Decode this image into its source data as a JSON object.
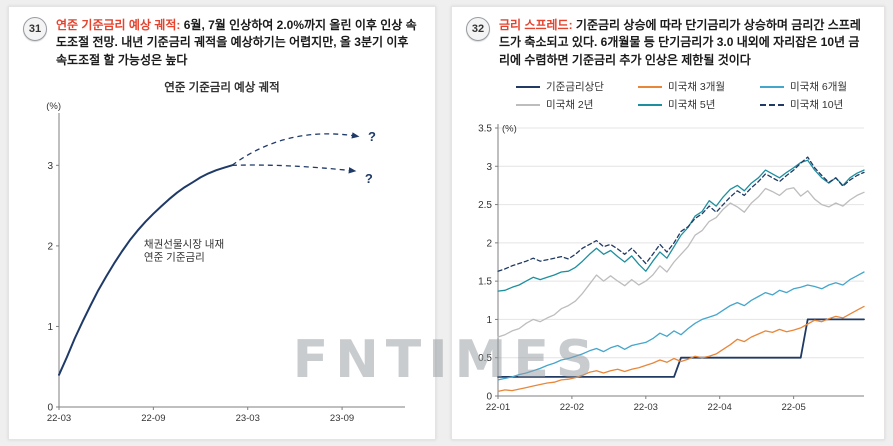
{
  "watermark": "FNTIMES",
  "accent_red": "#e5432e",
  "panels": [
    {
      "number": "31",
      "title_red": "연준 기준금리 예상 궤적:",
      "description": " 6월, 7월 인상하여 2.0%까지 올린 이후 인상 속도조절 전망. 내년 기준금리 궤적을 예상하기는 어렵지만, 올 3분기 이후 속도조절 할 가능성은 높다"
    },
    {
      "number": "32",
      "title_red": "금리 스프레드:",
      "description": " 기준금리 상승에 따라 단기금리가 상승하며 금리간 스프레드가 축소되고 있다. 6개월물 등 단기금리가 3.0 내외에 자리잡은 10년 금리에 수렴하면 기준금리 추가 인상은 제한될 것이다"
    }
  ],
  "chart_data": [
    {
      "type": "line",
      "title": "연준 기준금리 예상 궤적",
      "ylabel": "(%)",
      "ylabel_pos": "above-axis",
      "ylim": [
        0,
        3.6
      ],
      "yticks": [
        0,
        1,
        2,
        3
      ],
      "xlim": [
        0,
        22
      ],
      "xticks": [
        {
          "pos": 0,
          "label": "22-03"
        },
        {
          "pos": 6,
          "label": "22-09"
        },
        {
          "pos": 12,
          "label": "23-03"
        },
        {
          "pos": 18,
          "label": "23-09"
        }
      ],
      "grid": false,
      "accent": "#1f3a68",
      "series": [
        {
          "name": "채권선물시장 내재 연준 기준금리",
          "color": "#1f3a68",
          "width": 2,
          "x": [
            0,
            0.5,
            1,
            1.5,
            2,
            2.5,
            3,
            3.5,
            4,
            4.5,
            5,
            5.5,
            6,
            6.5,
            7,
            7.5,
            8,
            8.5,
            9,
            9.5,
            10,
            10.5,
            11
          ],
          "values": [
            0.4,
            0.62,
            0.85,
            1.06,
            1.26,
            1.45,
            1.62,
            1.78,
            1.93,
            2.07,
            2.19,
            2.3,
            2.4,
            2.49,
            2.58,
            2.66,
            2.73,
            2.79,
            2.85,
            2.9,
            2.94,
            2.97,
            3.0
          ]
        }
      ],
      "projections": [
        {
          "from_x": 11,
          "from_y": 3.0,
          "ctrl_x": 14.5,
          "ctrl_y": 3.5,
          "to_x": 19.0,
          "to_y": 3.36,
          "label": "?",
          "label_x": 19.9,
          "label_y": 3.3
        },
        {
          "from_x": 11,
          "from_y": 3.0,
          "ctrl_x": 14.5,
          "ctrl_y": 3.02,
          "to_x": 18.8,
          "to_y": 2.93,
          "label": "?",
          "label_x": 19.7,
          "label_y": 2.78
        }
      ],
      "annotation": {
        "lines": [
          "채권선물시장 내재",
          "연준 기준금리"
        ],
        "x": 5.4,
        "y": 1.98,
        "color": "#333333"
      }
    },
    {
      "type": "line",
      "ylabel": "(%)",
      "ylabel_pos": "beside-top-tick",
      "ylim": [
        0,
        3.5
      ],
      "yticks": [
        0,
        0.5,
        1,
        1.5,
        2,
        2.5,
        3,
        3.5
      ],
      "xlim": [
        0,
        52
      ],
      "xticks": [
        {
          "pos": 0,
          "label": "22-01"
        },
        {
          "pos": 10.5,
          "label": "22-02"
        },
        {
          "pos": 21,
          "label": "22-03"
        },
        {
          "pos": 31.5,
          "label": "22-04"
        },
        {
          "pos": 42,
          "label": "22-05"
        }
      ],
      "grid": true,
      "accent": "#1f3a68",
      "series": [
        {
          "name": "기준금리상단",
          "color": "#203a64",
          "width": 1.8,
          "values": [
            0.25,
            0.25,
            0.25,
            0.25,
            0.25,
            0.25,
            0.25,
            0.25,
            0.25,
            0.25,
            0.25,
            0.25,
            0.25,
            0.25,
            0.25,
            0.25,
            0.25,
            0.25,
            0.25,
            0.25,
            0.25,
            0.25,
            0.25,
            0.25,
            0.25,
            0.25,
            0.5,
            0.5,
            0.5,
            0.5,
            0.5,
            0.5,
            0.5,
            0.5,
            0.5,
            0.5,
            0.5,
            0.5,
            0.5,
            0.5,
            0.5,
            0.5,
            0.5,
            0.5,
            1.0,
            1.0,
            1.0,
            1.0,
            1.0,
            1.0,
            1.0,
            1.0,
            1.0
          ]
        },
        {
          "name": "미국채 3개월",
          "color": "#e8873a",
          "width": 1.3,
          "values": [
            0.06,
            0.08,
            0.07,
            0.09,
            0.11,
            0.13,
            0.15,
            0.17,
            0.18,
            0.21,
            0.22,
            0.24,
            0.27,
            0.31,
            0.33,
            0.3,
            0.33,
            0.35,
            0.32,
            0.35,
            0.37,
            0.4,
            0.43,
            0.47,
            0.44,
            0.49,
            0.45,
            0.48,
            0.52,
            0.5,
            0.52,
            0.55,
            0.61,
            0.67,
            0.74,
            0.71,
            0.77,
            0.81,
            0.85,
            0.83,
            0.87,
            0.84,
            0.86,
            0.89,
            0.94,
            0.99,
            0.97,
            1.01,
            1.04,
            1.02,
            1.07,
            1.12,
            1.17
          ]
        },
        {
          "name": "미국채 6개월",
          "color": "#45a6cc",
          "width": 1.3,
          "values": [
            0.21,
            0.23,
            0.25,
            0.28,
            0.3,
            0.33,
            0.36,
            0.4,
            0.43,
            0.47,
            0.49,
            0.52,
            0.55,
            0.59,
            0.62,
            0.58,
            0.63,
            0.66,
            0.61,
            0.66,
            0.68,
            0.7,
            0.75,
            0.82,
            0.78,
            0.85,
            0.8,
            0.88,
            0.95,
            1.0,
            1.03,
            1.06,
            1.12,
            1.18,
            1.22,
            1.18,
            1.25,
            1.3,
            1.35,
            1.32,
            1.38,
            1.35,
            1.4,
            1.42,
            1.45,
            1.43,
            1.4,
            1.45,
            1.48,
            1.45,
            1.52,
            1.57,
            1.62
          ]
        },
        {
          "name": "미국채 2년",
          "color": "#bdbdbd",
          "width": 1.3,
          "values": [
            0.77,
            0.8,
            0.85,
            0.88,
            0.95,
            1.0,
            0.97,
            1.02,
            1.06,
            1.14,
            1.18,
            1.24,
            1.34,
            1.46,
            1.58,
            1.5,
            1.57,
            1.5,
            1.44,
            1.52,
            1.45,
            1.5,
            1.58,
            1.7,
            1.62,
            1.75,
            1.85,
            1.95,
            2.1,
            2.16,
            2.28,
            2.33,
            2.44,
            2.52,
            2.47,
            2.4,
            2.52,
            2.6,
            2.71,
            2.67,
            2.62,
            2.7,
            2.72,
            2.61,
            2.68,
            2.57,
            2.5,
            2.47,
            2.52,
            2.48,
            2.56,
            2.62,
            2.66
          ]
        },
        {
          "name": "미국채 5년",
          "color": "#1d8f9e",
          "width": 1.3,
          "values": [
            1.37,
            1.38,
            1.42,
            1.45,
            1.5,
            1.55,
            1.52,
            1.55,
            1.58,
            1.62,
            1.63,
            1.68,
            1.76,
            1.85,
            1.93,
            1.85,
            1.9,
            1.82,
            1.75,
            1.83,
            1.72,
            1.63,
            1.76,
            1.88,
            1.8,
            1.95,
            2.1,
            2.2,
            2.35,
            2.41,
            2.55,
            2.48,
            2.6,
            2.7,
            2.75,
            2.68,
            2.78,
            2.85,
            2.95,
            2.9,
            2.85,
            2.92,
            2.98,
            3.05,
            3.08,
            2.95,
            2.85,
            2.78,
            2.85,
            2.75,
            2.85,
            2.91,
            2.95
          ]
        },
        {
          "name": "미국채 10년",
          "color": "#203a64",
          "width": 1.3,
          "dash": "4 3",
          "values": [
            1.63,
            1.66,
            1.7,
            1.73,
            1.76,
            1.8,
            1.76,
            1.78,
            1.8,
            1.82,
            1.79,
            1.85,
            1.93,
            1.98,
            2.03,
            1.95,
            1.98,
            1.92,
            1.85,
            1.93,
            1.83,
            1.73,
            1.85,
            1.98,
            1.88,
            2.0,
            2.15,
            2.21,
            2.32,
            2.38,
            2.48,
            2.4,
            2.5,
            2.6,
            2.68,
            2.62,
            2.72,
            2.8,
            2.9,
            2.85,
            2.8,
            2.88,
            2.95,
            3.04,
            3.12,
            2.98,
            2.88,
            2.79,
            2.85,
            2.74,
            2.82,
            2.88,
            2.92
          ]
        }
      ]
    }
  ]
}
